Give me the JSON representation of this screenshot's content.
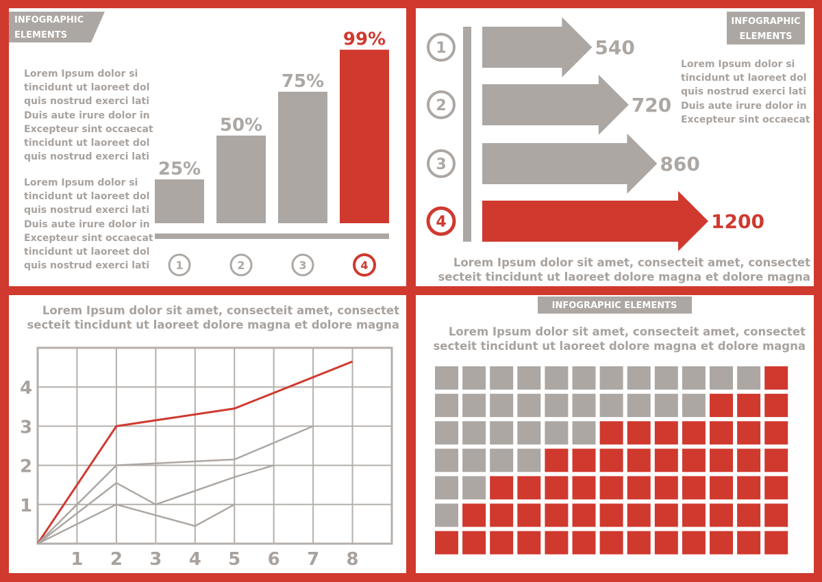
{
  "colors": {
    "accent": "#d0392e",
    "gray": "#aca7a3",
    "text_gray": "#a8a29e",
    "grid": "#b4afab"
  },
  "bar_panel": {
    "tag_lines": [
      "INFOGRAPHIC",
      "ELEMENTS"
    ],
    "para1": [
      "Lorem Ipsum dolor si",
      "tincidunt ut laoreet dol",
      "quis nostrud exerci lati",
      "Duis aute irure dolor in",
      "Excepteur sint occaecat",
      "tincidunt ut laoreet dol",
      "quis nostrud exerci lati"
    ],
    "para2": [
      "Lorem Ipsum dolor si",
      "tincidunt ut laoreet dol",
      "quis nostrud exerci lati",
      "Duis aute irure dolor in",
      "Excepteur sint occaecat",
      "tincidunt ut laoreet dol",
      "quis nostrud exerci lati"
    ]
  },
  "arrow_panel": {
    "tag_lines": [
      "INFOGRAPHIC",
      "ELEMENTS"
    ],
    "para": [
      "Lorem Ipsum dolor si",
      "tincidunt ut laoreet dol",
      "quis nostrud exerci lati",
      "Duis aute irure dolor in",
      "Excepteur sint occaecat"
    ],
    "footer": [
      "Lorem Ipsum dolor sit amet, consecteit amet, consectet",
      "secteit tincidunt ut laoreet dolore magna et dolore magna"
    ]
  },
  "line_panel": {
    "header": [
      "Lorem Ipsum dolor sit amet, consecteit amet, consectet",
      "secteit tincidunt ut laoreet dolore magna et dolore magna"
    ]
  },
  "waffle_panel": {
    "tag": "INFOGRAPHIC  ELEMENTS",
    "header": [
      "Lorem Ipsum dolor sit amet, consecteit amet, consectet",
      "secteit tincidunt ut laoreet dolore magna et dolore magna"
    ]
  },
  "chart_data": [
    {
      "type": "bar",
      "categories": [
        "1",
        "2",
        "3",
        "4"
      ],
      "values": [
        25,
        50,
        75,
        99
      ],
      "labels": [
        "25%",
        "50%",
        "75%",
        "99%"
      ],
      "highlight_index": 3,
      "ylim": [
        0,
        100
      ]
    },
    {
      "type": "bar",
      "orientation": "horizontal",
      "categories": [
        "1",
        "2",
        "3",
        "4"
      ],
      "values": [
        540,
        720,
        860,
        1200
      ],
      "labels": [
        "540",
        "720",
        "860",
        "1200"
      ],
      "highlight_index": 3
    },
    {
      "type": "line",
      "x_ticks": [
        "1",
        "2",
        "3",
        "4",
        "5",
        "6",
        "7",
        "8"
      ],
      "y_ticks": [
        "1",
        "2",
        "3",
        "4"
      ],
      "xlim": [
        0,
        9
      ],
      "ylim": [
        0,
        5
      ],
      "grid": true,
      "series": [
        {
          "color": "#d0392e",
          "points": [
            [
              0,
              0
            ],
            [
              2,
              3
            ],
            [
              5,
              3.45
            ],
            [
              8,
              4.65
            ]
          ]
        },
        {
          "color": "#aca7a3",
          "points": [
            [
              0,
              0
            ],
            [
              2,
              2
            ],
            [
              5,
              2.15
            ],
            [
              7,
              3
            ]
          ]
        },
        {
          "color": "#aca7a3",
          "points": [
            [
              0,
              0
            ],
            [
              2,
              1.55
            ],
            [
              3,
              1
            ],
            [
              5,
              1.7
            ],
            [
              6,
              2
            ]
          ]
        },
        {
          "color": "#aca7a3",
          "points": [
            [
              0,
              0
            ],
            [
              2,
              1
            ],
            [
              4,
              0.45
            ],
            [
              5,
              1
            ]
          ]
        }
      ]
    },
    {
      "type": "heatmap",
      "rows": 7,
      "cols": 13,
      "highlighted_per_row": [
        1,
        3,
        7,
        9,
        11,
        12,
        13
      ]
    }
  ]
}
